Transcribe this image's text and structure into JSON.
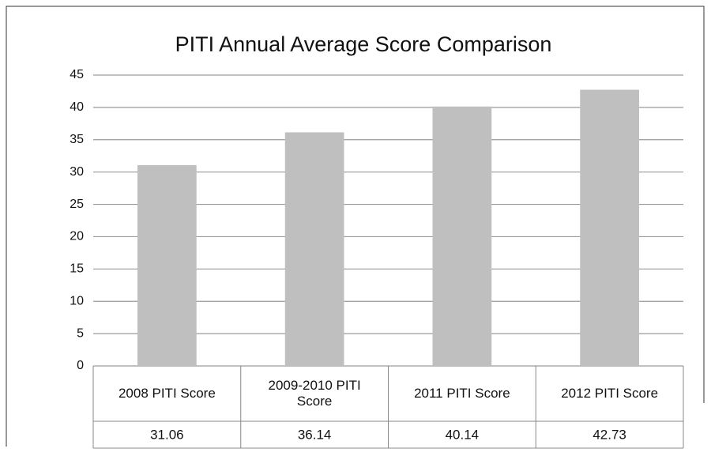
{
  "chart_data": {
    "type": "bar",
    "title": "PITI Annual Average Score Comparison",
    "categories": [
      "2008 PITI Score",
      "2009-2010 PITI Score",
      "2011 PITI Score",
      "2012 PITI Score"
    ],
    "values": [
      31.06,
      36.14,
      40.14,
      42.73
    ],
    "color": "#bfbfbf",
    "ylim": [
      0,
      45
    ],
    "yticks": [
      0,
      5,
      10,
      15,
      20,
      25,
      30,
      35,
      40,
      45
    ],
    "grid": true
  }
}
